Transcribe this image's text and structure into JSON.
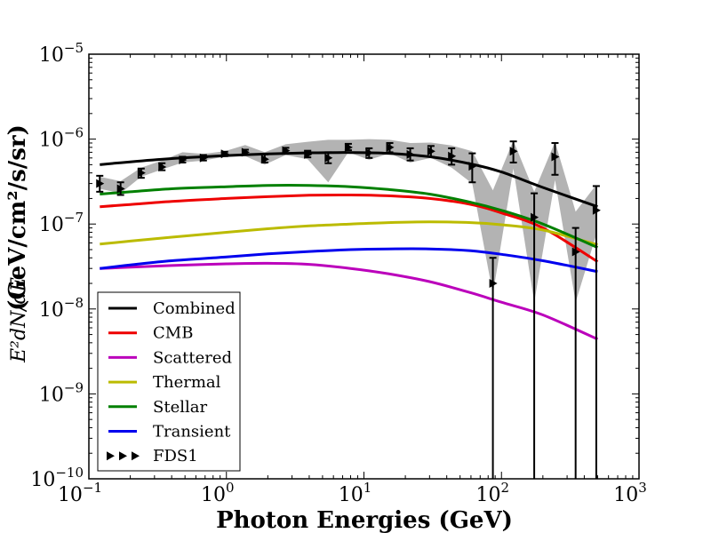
{
  "chart_data": {
    "type": "line",
    "xscale": "log",
    "yscale": "log",
    "xlim": [
      0.1,
      1000
    ],
    "ylim": [
      1e-10,
      1e-05
    ],
    "xlabel": "Photon Energies (GeV)",
    "ylabel": "(GeV/cm²/s/sr)",
    "ylabel_math": "E²dN/dE",
    "x_ticks": [
      {
        "value": 0.1,
        "base": "10",
        "exp": "−1"
      },
      {
        "value": 1,
        "base": "10",
        "exp": "0"
      },
      {
        "value": 10,
        "base": "10",
        "exp": "1"
      },
      {
        "value": 100,
        "base": "10",
        "exp": "2"
      },
      {
        "value": 1000,
        "base": "10",
        "exp": "3"
      }
    ],
    "y_ticks": [
      {
        "value": 1e-10,
        "base": "10",
        "exp": "−10"
      },
      {
        "value": 1e-09,
        "base": "10",
        "exp": "−9"
      },
      {
        "value": 1e-08,
        "base": "10",
        "exp": "−8"
      },
      {
        "value": 1e-07,
        "base": "10",
        "exp": "−7"
      },
      {
        "value": 1e-06,
        "base": "10",
        "exp": "−6"
      },
      {
        "value": 1e-05,
        "base": "10",
        "exp": "−5"
      }
    ],
    "series": [
      {
        "name": "Combined",
        "color": "#000000",
        "x": [
          0.12,
          0.2,
          0.4,
          1,
          2,
          4,
          8,
          15,
          30,
          60,
          100,
          200,
          500
        ],
        "y": [
          5e-07,
          5.4e-07,
          5.9e-07,
          6.4e-07,
          6.7e-07,
          6.9e-07,
          6.95e-07,
          6.8e-07,
          6.2e-07,
          5.1e-07,
          4.1e-07,
          2.7e-07,
          1.6e-07
        ]
      },
      {
        "name": "CMB",
        "color": "#ee0000",
        "x": [
          0.12,
          0.2,
          0.4,
          1,
          2,
          4,
          8,
          15,
          30,
          60,
          100,
          200,
          500
        ],
        "y": [
          1.6e-07,
          1.7e-07,
          1.85e-07,
          2e-07,
          2.1e-07,
          2.18e-07,
          2.2e-07,
          2.15e-07,
          2e-07,
          1.7e-07,
          1.35e-07,
          9e-08,
          3.6e-08
        ]
      },
      {
        "name": "Scattered",
        "color": "#bb00bb",
        "x": [
          0.12,
          0.2,
          0.4,
          1,
          2,
          4,
          8,
          15,
          30,
          60,
          100,
          200,
          500
        ],
        "y": [
          3e-08,
          3.1e-08,
          3.25e-08,
          3.4e-08,
          3.45e-08,
          3.35e-08,
          3e-08,
          2.6e-08,
          2.1e-08,
          1.55e-08,
          1.2e-08,
          8.5e-09,
          4.4e-09
        ]
      },
      {
        "name": "Thermal",
        "color": "#bbbb00",
        "x": [
          0.12,
          0.2,
          0.4,
          1,
          2,
          4,
          8,
          15,
          30,
          60,
          100,
          200,
          500
        ],
        "y": [
          5.8e-08,
          6.3e-08,
          7e-08,
          8e-08,
          8.8e-08,
          9.5e-08,
          1e-07,
          1.04e-07,
          1.06e-07,
          1.04e-07,
          9.8e-08,
          8.5e-08,
          5.7e-08
        ]
      },
      {
        "name": "Stellar",
        "color": "#008000",
        "x": [
          0.12,
          0.2,
          0.4,
          1,
          2,
          4,
          8,
          15,
          30,
          60,
          100,
          200,
          500
        ],
        "y": [
          2.25e-07,
          2.4e-07,
          2.6e-07,
          2.75e-07,
          2.85e-07,
          2.85e-07,
          2.75e-07,
          2.55e-07,
          2.25e-07,
          1.8e-07,
          1.45e-07,
          1e-07,
          5.3e-08
        ]
      },
      {
        "name": "Transient",
        "color": "#0000ee",
        "x": [
          0.12,
          0.2,
          0.4,
          1,
          2,
          4,
          8,
          15,
          30,
          60,
          100,
          200,
          500
        ],
        "y": [
          3e-08,
          3.3e-08,
          3.7e-08,
          4.1e-08,
          4.45e-08,
          4.75e-08,
          5e-08,
          5.1e-08,
          5.1e-08,
          4.85e-08,
          4.4e-08,
          3.7e-08,
          2.75e-08
        ]
      }
    ],
    "data_series": {
      "name": "FDS1",
      "color": "#000000",
      "points": [
        {
          "x": 0.12,
          "y": 3e-07,
          "lo": 2.4e-07,
          "hi": 3.7e-07
        },
        {
          "x": 0.17,
          "y": 2.6e-07,
          "lo": 2.2e-07,
          "hi": 3.1e-07
        },
        {
          "x": 0.24,
          "y": 4e-07,
          "lo": 3.5e-07,
          "hi": 4.5e-07
        },
        {
          "x": 0.34,
          "y": 4.7e-07,
          "lo": 4.3e-07,
          "hi": 5.2e-07
        },
        {
          "x": 0.48,
          "y": 5.7e-07,
          "lo": 5.3e-07,
          "hi": 6.2e-07
        },
        {
          "x": 0.68,
          "y": 6e-07,
          "lo": 5.6e-07,
          "hi": 6.5e-07
        },
        {
          "x": 0.97,
          "y": 6.7e-07,
          "lo": 6.3e-07,
          "hi": 7.1e-07
        },
        {
          "x": 1.37,
          "y": 7e-07,
          "lo": 6.5e-07,
          "hi": 7.5e-07
        },
        {
          "x": 1.9,
          "y": 5.8e-07,
          "lo": 5.3e-07,
          "hi": 6.6e-07
        },
        {
          "x": 2.7,
          "y": 7.3e-07,
          "lo": 6.8e-07,
          "hi": 7.9e-07
        },
        {
          "x": 3.9,
          "y": 6.6e-07,
          "lo": 6.1e-07,
          "hi": 7.3e-07
        },
        {
          "x": 5.5,
          "y": 6e-07,
          "lo": 5.2e-07,
          "hi": 7e-07
        },
        {
          "x": 7.7,
          "y": 8e-07,
          "lo": 7.4e-07,
          "hi": 8.8e-07
        },
        {
          "x": 10.9,
          "y": 6.9e-07,
          "lo": 6e-07,
          "hi": 7.8e-07
        },
        {
          "x": 15.4,
          "y": 8e-07,
          "lo": 7e-07,
          "hi": 9e-07
        },
        {
          "x": 21.7,
          "y": 6.6e-07,
          "lo": 5.6e-07,
          "hi": 7.8e-07
        },
        {
          "x": 30.7,
          "y": 7.2e-07,
          "lo": 6.2e-07,
          "hi": 8.3e-07
        },
        {
          "x": 43.4,
          "y": 6.3e-07,
          "lo": 5e-07,
          "hi": 7.8e-07
        },
        {
          "x": 61.3,
          "y": 4.8e-07,
          "lo": 3.1e-07,
          "hi": 6.8e-07
        },
        {
          "x": 86.6,
          "y": 2e-08,
          "lo": 1e-10,
          "hi": 4e-08
        },
        {
          "x": 122,
          "y": 7.2e-07,
          "lo": 5.3e-07,
          "hi": 9.4e-07
        },
        {
          "x": 173,
          "y": 1.2e-07,
          "lo": 1e-10,
          "hi": 2.3e-07
        },
        {
          "x": 245,
          "y": 6.2e-07,
          "lo": 3.8e-07,
          "hi": 9e-07
        },
        {
          "x": 346,
          "y": 4.7e-08,
          "lo": 1e-10,
          "hi": 9e-08
        },
        {
          "x": 489,
          "y": 1.45e-07,
          "lo": 1e-10,
          "hi": 2.8e-07
        }
      ]
    },
    "band": {
      "name": "uncertainty band",
      "color": "#b3b3b3",
      "x": [
        0.12,
        0.17,
        0.24,
        0.34,
        0.48,
        0.68,
        0.97,
        1.37,
        1.9,
        2.7,
        3.9,
        5.5,
        7.7,
        10.9,
        15.4,
        21.7,
        30.7,
        43.4,
        61.3,
        86.6,
        122,
        173,
        245,
        346,
        489
      ],
      "lo": [
        2.6e-07,
        2.3e-07,
        3.6e-07,
        4.4e-07,
        5.3e-07,
        5.6e-07,
        6.2e-07,
        6.3e-07,
        5e-07,
        6.5e-07,
        5.8e-07,
        3.1e-07,
        7e-07,
        5.7e-07,
        6.8e-07,
        5.3e-07,
        6e-07,
        4.6e-07,
        3e-07,
        1.5e-08,
        4.5e-07,
        1.2e-08,
        3.3e-07,
        1.2e-08,
        7.5e-08
      ],
      "hi": [
        3.6e-07,
        3.2e-07,
        4.6e-07,
        5.6e-07,
        7e-07,
        6.7e-07,
        7.2e-07,
        8.5e-07,
        7e-07,
        8.7e-07,
        9.3e-07,
        9.8e-07,
        9.8e-07,
        1e-06,
        9.8e-07,
        9e-07,
        9.1e-07,
        8.4e-07,
        7.2e-07,
        2.5e-07,
        9.6e-07,
        2.4e-07,
        9.3e-07,
        1.4e-07,
        2.9e-07
      ]
    },
    "legend": {
      "placement": "lower-left",
      "entries": [
        "Combined",
        "CMB",
        "Scattered",
        "Thermal",
        "Stellar",
        "Transient",
        "FDS1"
      ]
    }
  }
}
